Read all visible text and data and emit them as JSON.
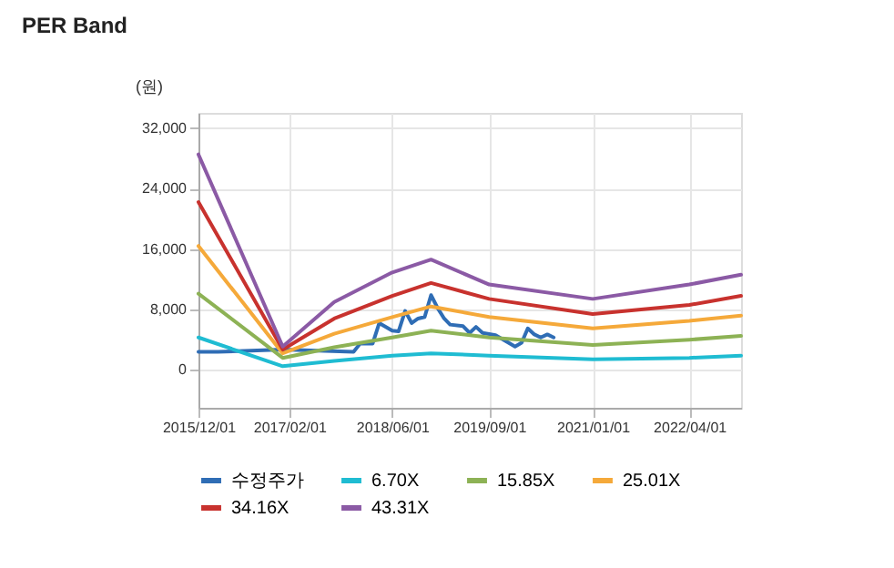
{
  "chart_data": {
    "type": "line",
    "title": "PER Band",
    "ylabel": "(원)",
    "xlim": [
      "2015-12-01",
      "2022-12-01"
    ],
    "xticks": [
      {
        "value": "2015-12-01",
        "label": "2015/12/01"
      },
      {
        "value": "2017-02-01",
        "label": "2017/02/01"
      },
      {
        "value": "2018-06-01",
        "label": "2018/06/01"
      },
      {
        "value": "2019-09-01",
        "label": "2019/09/01"
      },
      {
        "value": "2021-01-01",
        "label": "2021/01/01"
      },
      {
        "value": "2022-04-01",
        "label": "2022/04/01"
      }
    ],
    "ylim": [
      -5000,
      34000
    ],
    "yticks": [
      {
        "value": 0,
        "label": "0"
      },
      {
        "value": 8000,
        "label": "8,000"
      },
      {
        "value": 16000,
        "label": "16,000"
      },
      {
        "value": 24000,
        "label": "24,000"
      },
      {
        "value": 32000,
        "label": "32,000"
      }
    ],
    "grid": true,
    "legend": "bottom",
    "marker": "none",
    "line_style": "solid",
    "series": [
      {
        "name": "수정주가",
        "color": "#2f6db5",
        "x": [
          "2015-12",
          "2016-03",
          "2017-01",
          "2017-12",
          "2018-01",
          "2018-03",
          "2018-04",
          "2018-06",
          "2018-07",
          "2018-08",
          "2018-09",
          "2018-10",
          "2018-11",
          "2018-12",
          "2019-01",
          "2019-02",
          "2019-03",
          "2019-05",
          "2019-06",
          "2019-07",
          "2019-08",
          "2019-10",
          "2019-12",
          "2020-01",
          "2020-02",
          "2020-03",
          "2020-04",
          "2020-05",
          "2020-06",
          "2020-07"
        ],
        "values": [
          2400,
          2400,
          2700,
          2400,
          3500,
          3500,
          6200,
          5200,
          5100,
          7800,
          6200,
          6800,
          7000,
          9900,
          8200,
          6800,
          6000,
          5800,
          4900,
          5700,
          4900,
          4600,
          3600,
          3100,
          3600,
          5500,
          4700,
          4300,
          4700,
          4300
        ]
      },
      {
        "name": "6.70X",
        "color": "#1fbcd2",
        "x": [
          "2015-12",
          "2017-01",
          "2017-09",
          "2018-06",
          "2018-12",
          "2019-09",
          "2021-01",
          "2022-04",
          "2022-12"
        ],
        "values": [
          4300,
          500,
          1200,
          1900,
          2200,
          1900,
          1400,
          1600,
          1900
        ]
      },
      {
        "name": "15.85X",
        "color": "#8db255",
        "x": [
          "2015-12",
          "2017-01",
          "2017-09",
          "2018-06",
          "2018-12",
          "2019-09",
          "2021-01",
          "2022-04",
          "2022-12"
        ],
        "values": [
          10100,
          1600,
          3000,
          4300,
          5200,
          4300,
          3300,
          4000,
          4500
        ]
      },
      {
        "name": "25.01X",
        "color": "#f5a93a",
        "x": [
          "2015-12",
          "2017-01",
          "2017-09",
          "2018-06",
          "2018-12",
          "2019-09",
          "2021-01",
          "2022-04",
          "2022-12"
        ],
        "values": [
          16400,
          2200,
          4800,
          7000,
          8400,
          7000,
          5500,
          6500,
          7200
        ]
      },
      {
        "name": "34.16X",
        "color": "#c8322e",
        "x": [
          "2015-12",
          "2017-01",
          "2017-09",
          "2018-06",
          "2018-12",
          "2019-09",
          "2021-01",
          "2022-04",
          "2022-12"
        ],
        "values": [
          22200,
          2700,
          6800,
          9800,
          11500,
          9400,
          7400,
          8600,
          9800
        ]
      },
      {
        "name": "43.31X",
        "color": "#8b5aa5",
        "x": [
          "2015-12",
          "2017-01",
          "2017-09",
          "2018-06",
          "2018-12",
          "2019-09",
          "2021-01",
          "2022-04",
          "2022-12"
        ],
        "values": [
          28500,
          3100,
          9000,
          12900,
          14600,
          11300,
          9400,
          11300,
          12600
        ]
      }
    ]
  }
}
